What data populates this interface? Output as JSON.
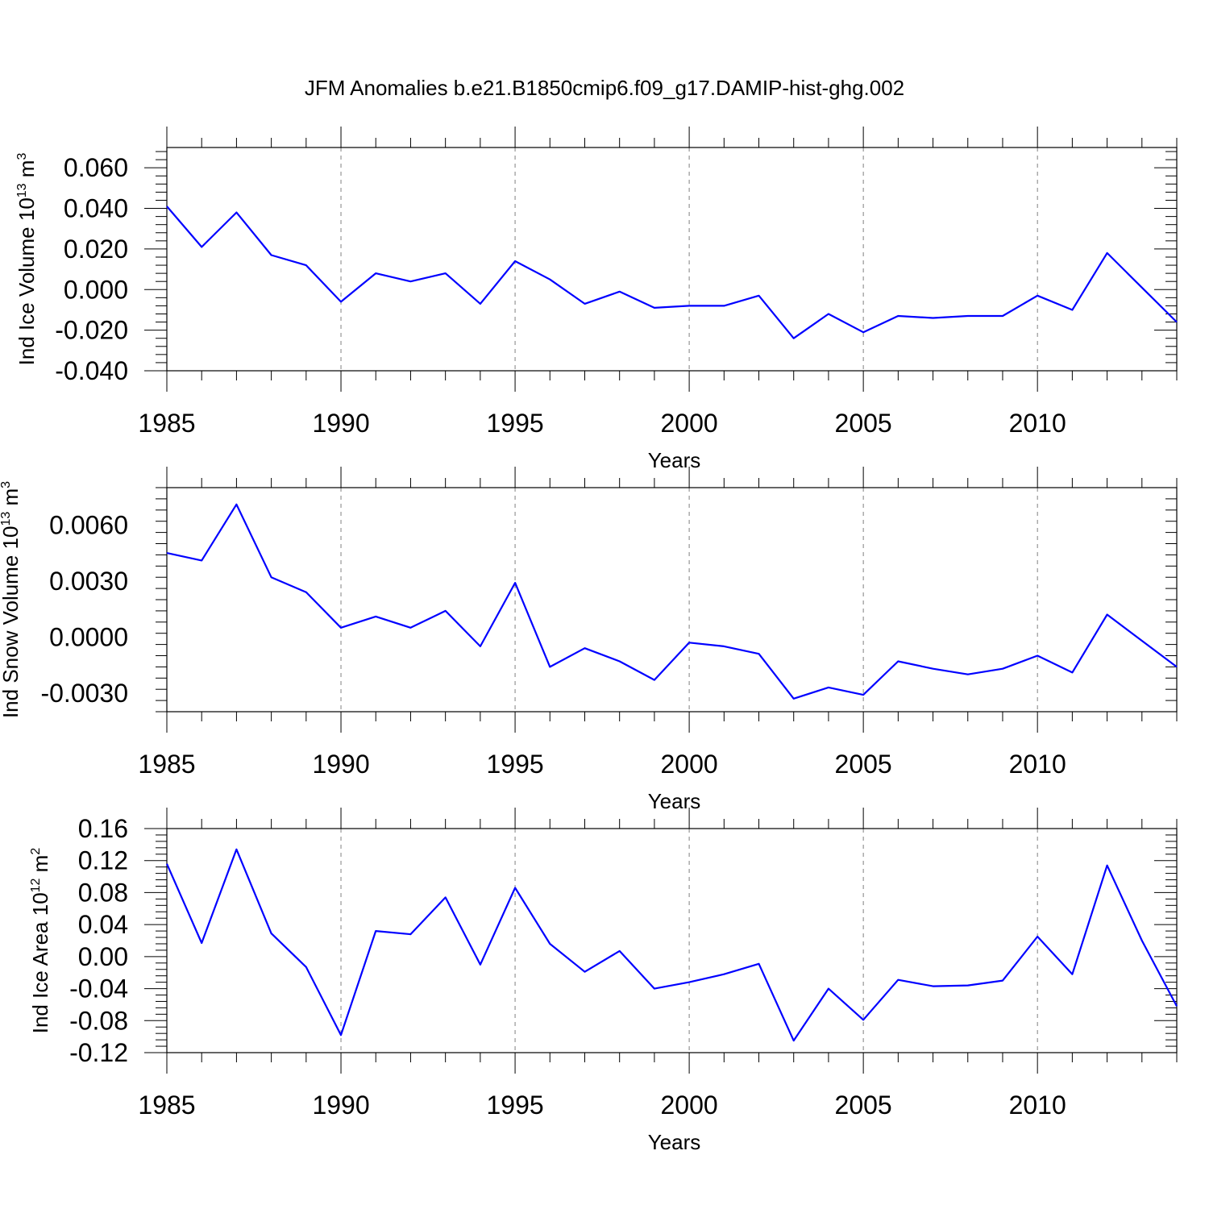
{
  "title": "JFM Anomalies b.e21.B1850cmip6.f09_g17.DAMIP-hist-ghg.002",
  "colors": {
    "line": "#0000ff",
    "axis": "#000000",
    "grid": "#808080"
  },
  "chart_data": [
    {
      "type": "line",
      "ylabel": "Ind Ice Volume 10",
      "ylabel_exp": "13",
      "ylabel_unit": " m",
      "ylabel_unit_exp": "3",
      "xlabel": "Years",
      "xlim": [
        1985,
        2014
      ],
      "ylim": [
        -0.04,
        0.07
      ],
      "yticks": [
        -0.04,
        -0.02,
        0.0,
        0.02,
        0.04,
        0.06
      ],
      "ytick_labels": [
        "-0.040",
        "-0.020",
        "0.000",
        "0.020",
        "0.040",
        "0.060"
      ],
      "xticks": [
        1985,
        1990,
        1995,
        2000,
        2005,
        2010
      ],
      "xtick_labels": [
        "1985",
        "1990",
        "1995",
        "2000",
        "2005",
        "2010"
      ],
      "grid_x": [
        1990,
        1995,
        2000,
        2005,
        2010
      ],
      "x": [
        1985,
        1986,
        1987,
        1988,
        1989,
        1990,
        1991,
        1992,
        1993,
        1994,
        1995,
        1996,
        1997,
        1998,
        1999,
        2000,
        2001,
        2002,
        2003,
        2004,
        2005,
        2006,
        2007,
        2008,
        2009,
        2010,
        2011,
        2012,
        2013,
        2014
      ],
      "series": [
        {
          "values": [
            0.041,
            0.021,
            0.038,
            0.017,
            0.012,
            -0.006,
            0.008,
            0.004,
            0.008,
            -0.007,
            0.014,
            0.005,
            -0.007,
            -0.001,
            -0.009,
            -0.008,
            -0.008,
            -0.003,
            -0.024,
            -0.012,
            -0.021,
            -0.013,
            -0.014,
            -0.013,
            -0.013,
            -0.003,
            -0.01,
            0.018,
            0.001,
            -0.016
          ]
        }
      ]
    },
    {
      "type": "line",
      "ylabel": "Ind Snow Volume 10",
      "ylabel_exp": "13",
      "ylabel_unit": " m",
      "ylabel_unit_exp": "3",
      "xlabel": "Years",
      "xlim": [
        1985,
        2014
      ],
      "ylim": [
        -0.004,
        0.008
      ],
      "yticks": [
        -0.003,
        0.0,
        0.003,
        0.006
      ],
      "ytick_labels": [
        "-0.0030",
        "0.0000",
        "0.0030",
        "0.0060"
      ],
      "xticks": [
        1985,
        1990,
        1995,
        2000,
        2005,
        2010
      ],
      "xtick_labels": [
        "1985",
        "1990",
        "1995",
        "2000",
        "2005",
        "2010"
      ],
      "grid_x": [
        1990,
        1995,
        2000,
        2005,
        2010
      ],
      "x": [
        1985,
        1986,
        1987,
        1988,
        1989,
        1990,
        1991,
        1992,
        1993,
        1994,
        1995,
        1996,
        1997,
        1998,
        1999,
        2000,
        2001,
        2002,
        2003,
        2004,
        2005,
        2006,
        2007,
        2008,
        2009,
        2010,
        2011,
        2012,
        2013,
        2014
      ],
      "series": [
        {
          "values": [
            0.0045,
            0.0041,
            0.0071,
            0.0032,
            0.0024,
            0.0005,
            0.0011,
            0.0005,
            0.0014,
            -0.0005,
            0.0029,
            -0.0016,
            -0.0006,
            -0.0013,
            -0.0023,
            -0.0003,
            -0.0005,
            -0.0009,
            -0.0033,
            -0.0027,
            -0.0031,
            -0.0013,
            -0.0017,
            -0.002,
            -0.0017,
            -0.001,
            -0.0019,
            0.0012,
            -0.0002,
            -0.0016
          ]
        }
      ]
    },
    {
      "type": "line",
      "ylabel": "Ind Ice Area 10",
      "ylabel_exp": "12",
      "ylabel_unit": " m",
      "ylabel_unit_exp": "2",
      "xlabel": "Years",
      "xlim": [
        1985,
        2014
      ],
      "ylim": [
        -0.12,
        0.16
      ],
      "yticks": [
        -0.12,
        -0.08,
        -0.04,
        0.0,
        0.04,
        0.08,
        0.12,
        0.16
      ],
      "ytick_labels": [
        "-0.12",
        "-0.08",
        "-0.04",
        "0.00",
        "0.04",
        "0.08",
        "0.12",
        "0.16"
      ],
      "xticks": [
        1985,
        1990,
        1995,
        2000,
        2005,
        2010
      ],
      "xtick_labels": [
        "1985",
        "1990",
        "1995",
        "2000",
        "2005",
        "2010"
      ],
      "grid_x": [
        1990,
        1995,
        2000,
        2005,
        2010
      ],
      "x": [
        1985,
        1986,
        1987,
        1988,
        1989,
        1990,
        1991,
        1992,
        1993,
        1994,
        1995,
        1996,
        1997,
        1998,
        1999,
        2000,
        2001,
        2002,
        2003,
        2004,
        2005,
        2006,
        2007,
        2008,
        2009,
        2010,
        2011,
        2012,
        2013,
        2014
      ],
      "series": [
        {
          "values": [
            0.116,
            0.017,
            0.134,
            0.029,
            -0.013,
            -0.098,
            0.032,
            0.028,
            0.074,
            -0.01,
            0.086,
            0.016,
            -0.019,
            0.007,
            -0.04,
            -0.032,
            -0.022,
            -0.009,
            -0.105,
            -0.04,
            -0.079,
            -0.029,
            -0.037,
            -0.036,
            -0.03,
            0.025,
            -0.022,
            0.114,
            0.02,
            -0.062
          ]
        }
      ]
    }
  ]
}
